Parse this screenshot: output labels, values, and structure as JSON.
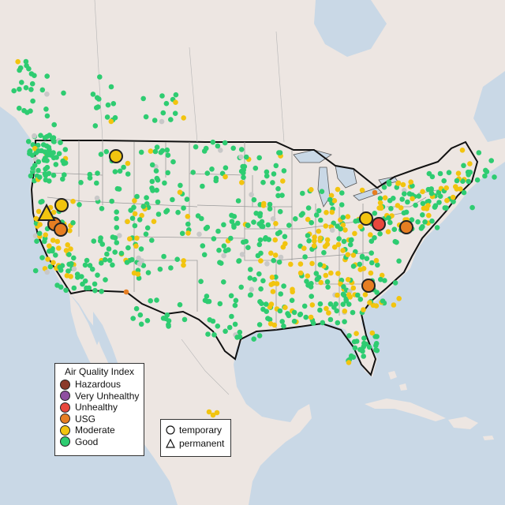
{
  "legend": {
    "title": "Air Quality Index",
    "categories": [
      {
        "label": "Hazardous",
        "color": "#8b3a2b"
      },
      {
        "label": "Very Unhealthy",
        "color": "#8f4fa0"
      },
      {
        "label": "Unhealthy",
        "color": "#e8473c"
      },
      {
        "label": "USG",
        "color": "#e67e22"
      },
      {
        "label": "Moderate",
        "color": "#f2c40f"
      },
      {
        "label": "Good",
        "color": "#2ecc71"
      }
    ],
    "shapes": [
      {
        "label": "temporary",
        "shape": "circle-icon"
      },
      {
        "label": "permanent",
        "shape": "triangle-icon"
      }
    ]
  },
  "colors": {
    "ocean": "#c9d8e6",
    "land": "#ede6e2",
    "no_data": "#c8c8c8"
  }
}
